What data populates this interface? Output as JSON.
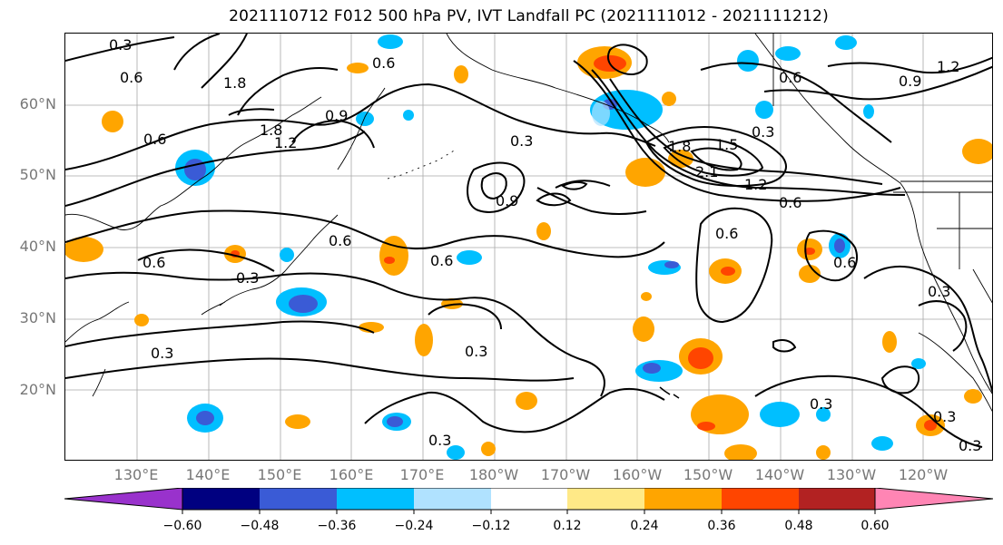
{
  "title": "2021110712 F012 500 hPa PV, IVT Landfall PC (2021111012 - 2021111212)",
  "lat_labels": [
    "60°N",
    "50°N",
    "40°N",
    "30°N",
    "20°N"
  ],
  "lon_labels": [
    "130°E",
    "140°E",
    "150°E",
    "160°E",
    "170°E",
    "180°W",
    "170°W",
    "160°W",
    "150°W",
    "140°W",
    "130°W",
    "120°W"
  ],
  "contour_labels": [
    "0.3",
    "0.6",
    "0.9",
    "1.2",
    "1.5",
    "1.8",
    "2.1"
  ],
  "colorbar": {
    "ticks": [
      "−0.60",
      "−0.48",
      "−0.36",
      "−0.24",
      "−0.12",
      "0.12",
      "0.24",
      "0.36",
      "0.48",
      "0.60"
    ],
    "colors": [
      "#9932CC",
      "#000080",
      "#3A5BD6",
      "#00BFFF",
      "#B0E2FF",
      "#FFFFFF",
      "#FFE987",
      "#FFA500",
      "#FF4500",
      "#B22222",
      "#FF85B4"
    ]
  },
  "colors": {
    "contour": "#000000",
    "grid": "#a9a9a9",
    "axis_label": "#777777"
  }
}
